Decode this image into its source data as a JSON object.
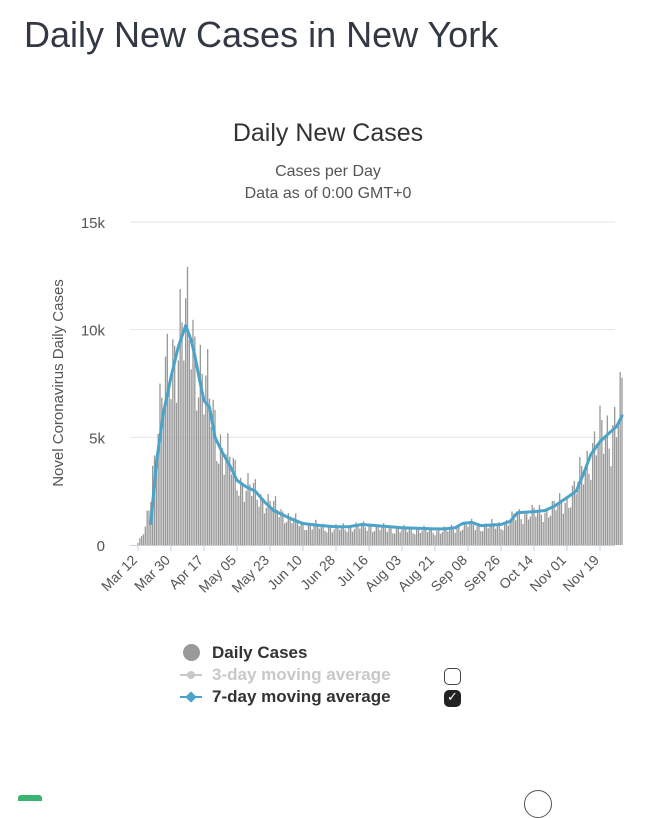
{
  "page": {
    "title": "Daily New Cases in New York"
  },
  "legend": {
    "daily": "Daily Cases",
    "ma3": "3-day moving average",
    "ma7": "7-day moving average",
    "ma3_checked": false,
    "ma7_checked": true
  },
  "colors": {
    "bars": "#999999",
    "ma7": "#4aa3c9",
    "ma3": "#c8c8c8",
    "grid": "#e6e6e6",
    "text": "#333333"
  },
  "chart_data": {
    "type": "bar",
    "title": "Daily New Cases",
    "subtitle": "Cases per Day",
    "subtitle2": "Data as of 0:00 GMT+0",
    "ylabel": "Novel Coronavirus Daily Cases",
    "xlabel": "",
    "ylim": [
      0,
      15000
    ],
    "yticks": [
      0,
      5000,
      10000,
      15000
    ],
    "ytick_labels": [
      "0",
      "5k",
      "10k",
      "15k"
    ],
    "x_start": "Mar 12",
    "x_tick_labels": [
      "Mar 12",
      "Mar 30",
      "Apr 17",
      "May 05",
      "May 23",
      "Jun 10",
      "Jun 28",
      "Jul 16",
      "Aug 03",
      "Aug 21",
      "Sep 08",
      "Sep 26",
      "Oct 14",
      "Nov 01",
      "Nov 19"
    ],
    "grid": true,
    "legend_position": "bottom",
    "series": [
      {
        "name": "Daily Cases",
        "type": "bar",
        "anchors": [
          [
            "Mar 12",
            100
          ],
          [
            "Mar 16",
            700
          ],
          [
            "Mar 19",
            2500
          ],
          [
            "Mar 22",
            5200
          ],
          [
            "Mar 26",
            7000
          ],
          [
            "Mar 30",
            8200
          ],
          [
            "Apr 03",
            10200
          ],
          [
            "Apr 06",
            10000
          ],
          [
            "Apr 10",
            9500
          ],
          [
            "Apr 14",
            8700
          ],
          [
            "Apr 17",
            7500
          ],
          [
            "Apr 20",
            6500
          ],
          [
            "Apr 24",
            5200
          ],
          [
            "Apr 28",
            4300
          ],
          [
            "May 01",
            3800
          ],
          [
            "May 05",
            3100
          ],
          [
            "May 10",
            2700
          ],
          [
            "May 15",
            2400
          ],
          [
            "May 20",
            2100
          ],
          [
            "May 23",
            1900
          ],
          [
            "May 28",
            1600
          ],
          [
            "Jun 02",
            1300
          ],
          [
            "Jun 06",
            1100
          ],
          [
            "Jun 10",
            950
          ],
          [
            "Jun 20",
            850
          ],
          [
            "Jun 28",
            750
          ],
          [
            "Jul 05",
            850
          ],
          [
            "Jul 16",
            850
          ],
          [
            "Jul 25",
            750
          ],
          [
            "Aug 03",
            700
          ],
          [
            "Aug 12",
            700
          ],
          [
            "Aug 21",
            650
          ],
          [
            "Aug 28",
            700
          ],
          [
            "Sep 04",
            850
          ],
          [
            "Sep 08",
            950
          ],
          [
            "Sep 15",
            850
          ],
          [
            "Sep 26",
            950
          ],
          [
            "Oct 01",
            1100
          ],
          [
            "Oct 05",
            1400
          ],
          [
            "Oct 10",
            1450
          ],
          [
            "Oct 14",
            1450
          ],
          [
            "Oct 20",
            1550
          ],
          [
            "Oct 25",
            1700
          ],
          [
            "Nov 01",
            2100
          ],
          [
            "Nov 06",
            2600
          ],
          [
            "Nov 10",
            3600
          ],
          [
            "Nov 14",
            4300
          ],
          [
            "Nov 19",
            4900
          ],
          [
            "Nov 24",
            5300
          ],
          [
            "Nov 28",
            5800
          ],
          [
            "Dec 01",
            6400
          ]
        ]
      },
      {
        "name": "7-day moving average",
        "type": "line",
        "points": [
          [
            "Mar 19",
            1000
          ],
          [
            "Mar 22",
            3800
          ],
          [
            "Mar 26",
            6200
          ],
          [
            "Mar 30",
            7800
          ],
          [
            "Apr 03",
            9200
          ],
          [
            "Apr 07",
            10200
          ],
          [
            "Apr 10",
            9500
          ],
          [
            "Apr 12",
            8800
          ],
          [
            "Apr 15",
            7500
          ],
          [
            "Apr 17",
            6700
          ],
          [
            "Apr 20",
            6400
          ],
          [
            "Apr 23",
            5000
          ],
          [
            "Apr 27",
            4300
          ],
          [
            "May 01",
            3700
          ],
          [
            "May 05",
            3000
          ],
          [
            "May 10",
            2700
          ],
          [
            "May 15",
            2500
          ],
          [
            "May 20",
            2000
          ],
          [
            "May 25",
            1600
          ],
          [
            "May 30",
            1400
          ],
          [
            "Jun 04",
            1200
          ],
          [
            "Jun 10",
            1000
          ],
          [
            "Jun 20",
            900
          ],
          [
            "Jun 28",
            850
          ],
          [
            "Jul 05",
            850
          ],
          [
            "Jul 12",
            950
          ],
          [
            "Jul 20",
            900
          ],
          [
            "Aug 03",
            800
          ],
          [
            "Aug 21",
            750
          ],
          [
            "Aug 26",
            750
          ],
          [
            "Sep 01",
            800
          ],
          [
            "Sep 05",
            1000
          ],
          [
            "Sep 10",
            1050
          ],
          [
            "Sep 15",
            900
          ],
          [
            "Sep 26",
            950
          ],
          [
            "Oct 01",
            1100
          ],
          [
            "Oct 05",
            1500
          ],
          [
            "Oct 14",
            1550
          ],
          [
            "Oct 20",
            1600
          ],
          [
            "Oct 25",
            1800
          ],
          [
            "Nov 01",
            2200
          ],
          [
            "Nov 06",
            2500
          ],
          [
            "Nov 10",
            3300
          ],
          [
            "Nov 14",
            4200
          ],
          [
            "Nov 19",
            4800
          ],
          [
            "Nov 24",
            5200
          ],
          [
            "Nov 28",
            5500
          ],
          [
            "Dec 01",
            6000
          ]
        ]
      }
    ]
  }
}
